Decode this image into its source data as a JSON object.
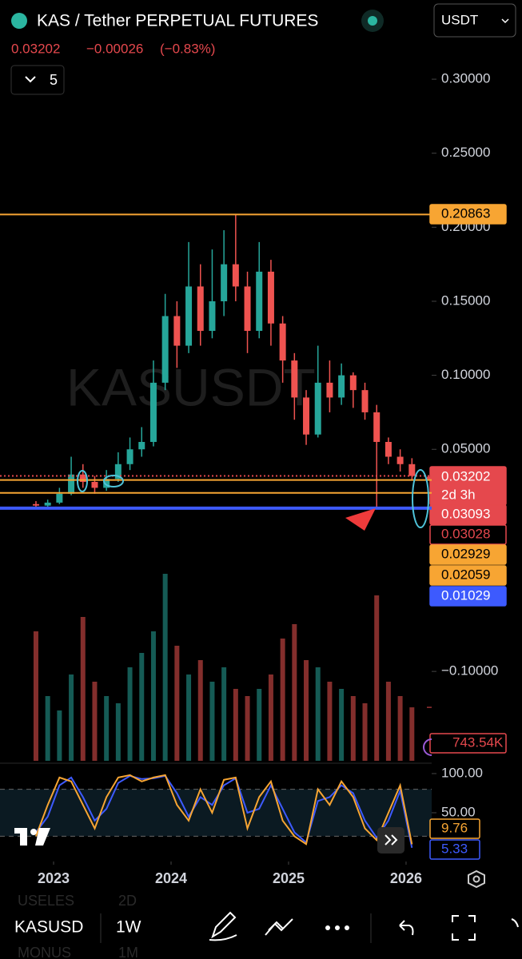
{
  "header": {
    "title": "KAS / Tether PERPETUAL FUTURES",
    "price": "0.03202",
    "change": "−0.00026",
    "change_pct": "(−0.83%)",
    "indicator_count": "5",
    "currency": "USDT",
    "watermark": "KASUSDT"
  },
  "chart_data": [
    {
      "type": "candlestick",
      "x": [
        2022.85,
        2022.95,
        2023.05,
        2023.15,
        2023.25,
        2023.35,
        2023.45,
        2023.55,
        2023.65,
        2023.75,
        2023.85,
        2023.95,
        2024.05,
        2024.15,
        2024.25,
        2024.35,
        2024.45,
        2024.55,
        2024.65,
        2024.75,
        2024.85,
        2024.95,
        2025.05,
        2025.15,
        2025.25,
        2025.35,
        2025.45,
        2025.55,
        2025.65,
        2025.75,
        2025.85,
        2025.95,
        2026.05
      ],
      "open": [
        0.013,
        0.012,
        0.014,
        0.02,
        0.033,
        0.028,
        0.024,
        0.03,
        0.04,
        0.05,
        0.055,
        0.095,
        0.14,
        0.12,
        0.16,
        0.13,
        0.15,
        0.175,
        0.16,
        0.13,
        0.17,
        0.135,
        0.11,
        0.085,
        0.06,
        0.095,
        0.085,
        0.1,
        0.09,
        0.075,
        0.055,
        0.045,
        0.04
      ],
      "high": [
        0.015,
        0.016,
        0.024,
        0.045,
        0.04,
        0.032,
        0.036,
        0.048,
        0.058,
        0.065,
        0.11,
        0.155,
        0.15,
        0.19,
        0.175,
        0.185,
        0.198,
        0.2086,
        0.17,
        0.19,
        0.178,
        0.14,
        0.115,
        0.09,
        0.12,
        0.11,
        0.108,
        0.102,
        0.095,
        0.08,
        0.058,
        0.05,
        0.044
      ],
      "low": [
        0.011,
        0.011,
        0.013,
        0.019,
        0.024,
        0.02,
        0.022,
        0.028,
        0.036,
        0.045,
        0.052,
        0.09,
        0.105,
        0.115,
        0.12,
        0.125,
        0.14,
        0.15,
        0.115,
        0.125,
        0.12,
        0.095,
        0.07,
        0.053,
        0.058,
        0.075,
        0.08,
        0.078,
        0.07,
        0.01029,
        0.04,
        0.035,
        0.029
      ],
      "close": [
        0.012,
        0.014,
        0.02,
        0.033,
        0.028,
        0.024,
        0.03,
        0.04,
        0.05,
        0.055,
        0.095,
        0.14,
        0.12,
        0.16,
        0.13,
        0.15,
        0.175,
        0.16,
        0.13,
        0.17,
        0.135,
        0.11,
        0.085,
        0.06,
        0.095,
        0.085,
        0.1,
        0.09,
        0.075,
        0.055,
        0.045,
        0.04,
        0.032
      ],
      "up_color": "#26a69a",
      "down_color": "#ef5350",
      "xlim": [
        2022.544,
        2026.218
      ],
      "xticks": [
        2023,
        2024,
        2025,
        2026
      ],
      "ylim": [
        -0.162,
        0.3265
      ],
      "yticks": [
        {
          "value": 0.3,
          "label": "0.30000"
        },
        {
          "value": 0.25,
          "label": "0.25000"
        },
        {
          "value": 0.2,
          "label": "0.20000"
        },
        {
          "value": 0.15,
          "label": "0.15000"
        },
        {
          "value": 0.1,
          "label": "0.10000"
        },
        {
          "value": 0.05,
          "label": "0.05000"
        },
        {
          "value": -0.1,
          "label": "−0.10000"
        }
      ],
      "price_lines": [
        {
          "value": 0.20863,
          "label": "0.20863",
          "color": "#f7a533",
          "line": "solid",
          "box": "filled"
        },
        {
          "value": 0.03202,
          "label": "0.03202",
          "color": "#e5484d",
          "line": "dotted",
          "box": "filled",
          "countdown": "2d 3h"
        },
        {
          "value": 0.03093,
          "label": "0.03093",
          "color": "#e5484d",
          "line": "none",
          "box": "filled"
        },
        {
          "value": 0.03028,
          "label": "0.03028",
          "color": "#e5484d",
          "line": "none",
          "box": "outlined"
        },
        {
          "value": 0.02929,
          "label": "0.02929",
          "color": "#f7a533",
          "line": "solid",
          "box": "filled"
        },
        {
          "value": 0.02059,
          "label": "0.02059",
          "color": "#f7a533",
          "line": "solid",
          "box": "filled"
        },
        {
          "value": 0.01029,
          "label": "0.01029",
          "color": "#3d5afe",
          "line": "thick",
          "box": "filled"
        }
      ]
    },
    {
      "type": "bar",
      "name": "volume",
      "x": [
        2022.85,
        2022.95,
        2023.05,
        2023.15,
        2023.25,
        2023.35,
        2023.45,
        2023.55,
        2023.65,
        2023.75,
        2023.85,
        2023.95,
        2024.05,
        2024.15,
        2024.25,
        2024.35,
        2024.45,
        2024.55,
        2024.65,
        2024.75,
        2024.85,
        2024.95,
        2025.05,
        2025.15,
        2025.25,
        2025.35,
        2025.45,
        2025.55,
        2025.65,
        2025.75,
        2025.85,
        2025.95,
        2026.05
      ],
      "values": [
        1800000,
        900000,
        700000,
        1200000,
        2000000,
        1100000,
        900000,
        800000,
        1300000,
        1500000,
        1800000,
        2600000,
        1600000,
        1200000,
        1400000,
        1100000,
        1300000,
        1000000,
        900000,
        1000000,
        1200000,
        1700000,
        1900000,
        1400000,
        1300000,
        1100000,
        1000000,
        900000,
        800000,
        2300000,
        1100000,
        900000,
        743540
      ],
      "ylim": [
        0,
        4000000
      ],
      "last_label": {
        "value": 743540,
        "label": "743.54K"
      },
      "color": "#e5484d"
    },
    {
      "type": "line",
      "name": "stochastic",
      "x": [
        2022.85,
        2022.95,
        2023.05,
        2023.15,
        2023.25,
        2023.35,
        2023.45,
        2023.55,
        2023.65,
        2023.75,
        2023.85,
        2023.95,
        2024.05,
        2024.15,
        2024.25,
        2024.35,
        2024.45,
        2024.55,
        2024.65,
        2024.75,
        2024.85,
        2024.95,
        2025.05,
        2025.15,
        2025.25,
        2025.35,
        2025.45,
        2025.55,
        2025.65,
        2025.75,
        2025.85,
        2025.95,
        2026.05
      ],
      "ylim": [
        -9.2,
        111.2
      ],
      "yticks": [
        {
          "value": 100,
          "label": "100.00"
        },
        {
          "value": 50,
          "label": "50.00"
        }
      ],
      "bands": [
        20,
        80
      ],
      "series": [
        {
          "color": "#f7a533",
          "values": [
            20,
            60,
            95,
            90,
            60,
            30,
            70,
            95,
            98,
            90,
            95,
            98,
            60,
            40,
            80,
            50,
            92,
            95,
            30,
            70,
            90,
            40,
            20,
            10,
            80,
            60,
            90,
            70,
            30,
            15,
            50,
            85,
            9.76
          ],
          "last_label": "9.76"
        },
        {
          "color": "#3d5afe",
          "values": [
            25,
            45,
            85,
            95,
            70,
            40,
            55,
            88,
            97,
            93,
            94,
            97,
            75,
            45,
            70,
            60,
            85,
            94,
            50,
            55,
            85,
            55,
            25,
            12,
            65,
            70,
            85,
            75,
            40,
            18,
            40,
            78,
            5.33
          ],
          "last_label": "5.33"
        }
      ]
    }
  ],
  "toolbar": {
    "symbol": "KASUSD",
    "interval": "1W",
    "ghost": [
      "USELES",
      "2D",
      "MONUS",
      "1M"
    ]
  }
}
